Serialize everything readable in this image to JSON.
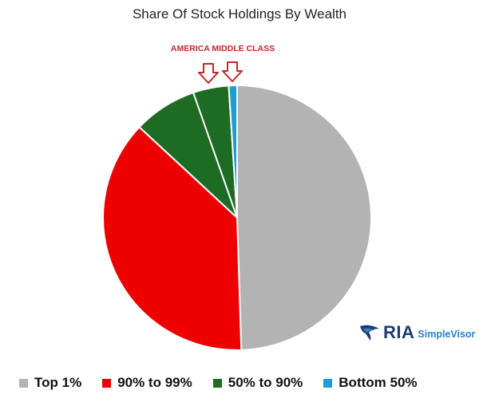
{
  "chart_data": {
    "type": "pie",
    "title": "Share Of Stock Holdings By Wealth",
    "start": "12 o'clock, clockwise",
    "slices": [
      {
        "label": "Top 1%",
        "value": 49.5,
        "color": "#b3b3b3"
      },
      {
        "label": "90% to 99%",
        "value": 37.5,
        "color": "#ee0000"
      },
      {
        "label": "50% to 90%",
        "color": "#1e6b23",
        "value": 12.0
      },
      {
        "label": "Bottom 50%",
        "value": 1.0,
        "color": "#1f9bd6"
      }
    ],
    "annotation": "AMERICA MIDDLE CLASS",
    "legend_position": "bottom"
  },
  "logo": {
    "name": "RIA",
    "product": "SimpleVisor"
  }
}
